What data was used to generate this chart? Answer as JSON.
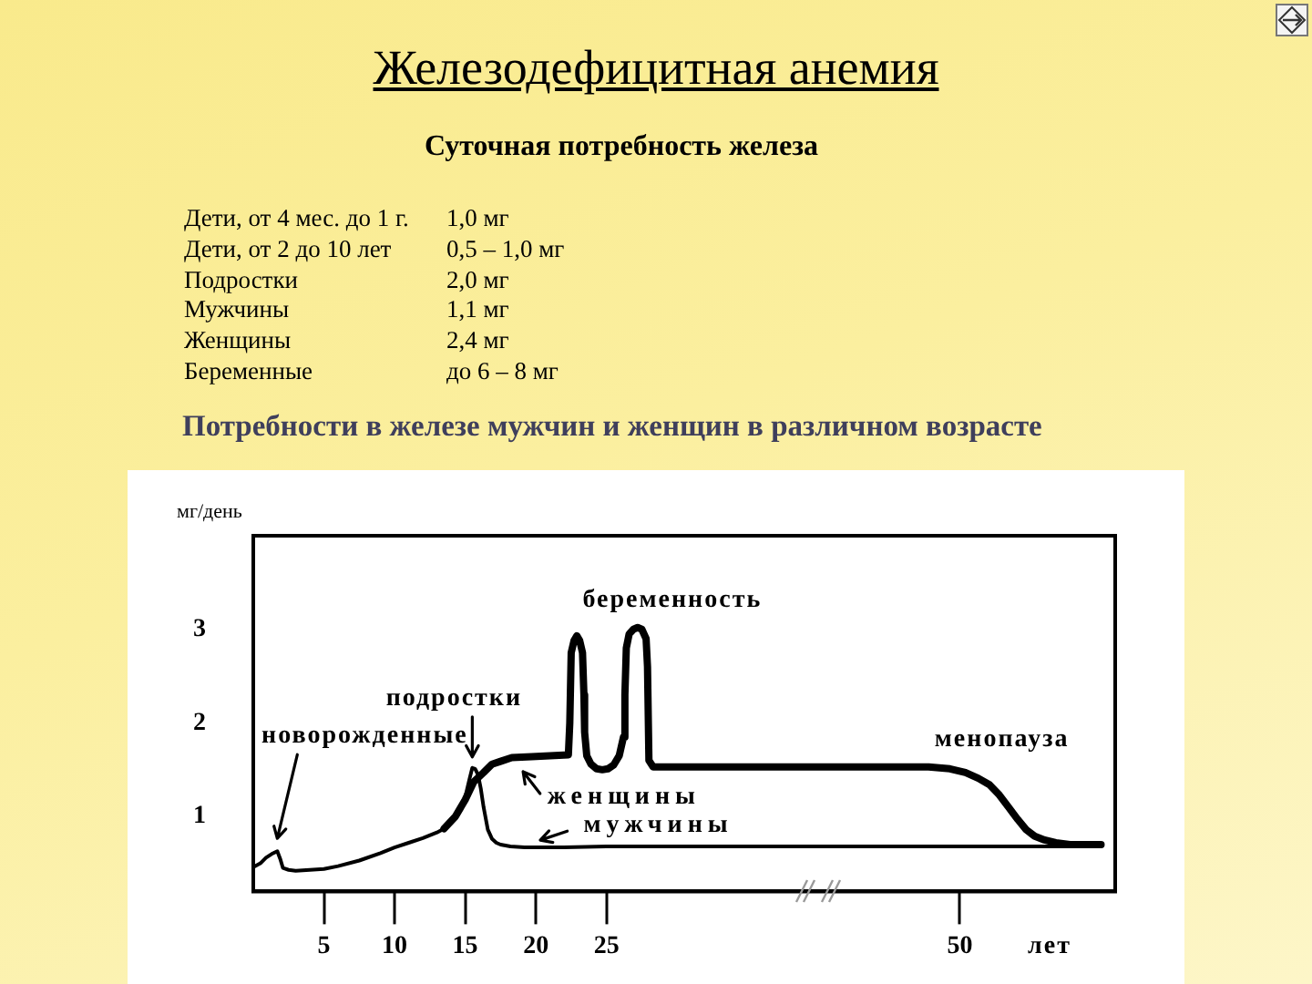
{
  "chart_data": {
    "type": "line",
    "title": "Железодефицитная анемия",
    "subtitle": "Суточная потребность железа",
    "xlabel": "лет",
    "ylabel": "мг/день",
    "xlim": [
      0,
      61
    ],
    "xticks": [
      5,
      10,
      15,
      20,
      25,
      50
    ],
    "ylim": [
      0.2,
      4
    ],
    "yticks": [
      1,
      2,
      3
    ],
    "grid": false,
    "legend": "bottom",
    "marker": "none",
    "series": [
      {
        "name": "женщины",
        "color": "#000000",
        "x": [
          13.5,
          14.3,
          15,
          15.6,
          16.3,
          16.9,
          17.5,
          18.3,
          19.7,
          21,
          22.3,
          22.4,
          22.5,
          22.7,
          22.9,
          23.1,
          23.3,
          23.4,
          23.45,
          23.6,
          23.9,
          24.3,
          24.7,
          25.1,
          25.5,
          25.9,
          26.2,
          26.3,
          26.4,
          26.6,
          26.9,
          27.2,
          27.5,
          27.8,
          27.9,
          28.0,
          28.3,
          35,
          47.8,
          49.3,
          50.4,
          51.3,
          52.1,
          52.8,
          53.4,
          54.1,
          54.7,
          55.3,
          56,
          56.8,
          57.8,
          60
        ],
        "values": [
          0.87,
          1.0,
          1.18,
          1.37,
          1.47,
          1.56,
          1.59,
          1.63,
          1.64,
          1.65,
          1.66,
          2.0,
          2.75,
          2.88,
          2.93,
          2.88,
          2.75,
          2.3,
          1.9,
          1.65,
          1.56,
          1.51,
          1.5,
          1.51,
          1.55,
          1.65,
          1.85,
          2.3,
          2.8,
          2.95,
          3.0,
          3.02,
          3.0,
          2.9,
          2.6,
          1.6,
          1.53,
          1.53,
          1.53,
          1.51,
          1.47,
          1.41,
          1.34,
          1.23,
          1.11,
          0.97,
          0.86,
          0.79,
          0.75,
          0.72,
          0.7,
          0.7
        ]
      },
      {
        "name": "мужчины",
        "color": "#000000",
        "x": [
          0,
          0.5,
          0.9,
          1.3,
          1.7,
          1.9,
          2.1,
          2.5,
          3,
          4,
          5,
          6,
          7.5,
          9,
          10,
          11,
          12,
          13,
          13.5,
          14,
          14.6,
          15,
          15.3,
          15.5,
          15.7,
          15.9,
          16.1,
          16.3,
          16.6,
          16.9,
          17.2,
          17.5,
          18.2,
          19.2,
          22,
          25,
          35,
          45,
          55,
          60
        ],
        "values": [
          0.46,
          0.5,
          0.56,
          0.6,
          0.63,
          0.55,
          0.45,
          0.43,
          0.42,
          0.43,
          0.44,
          0.47,
          0.53,
          0.61,
          0.67,
          0.72,
          0.77,
          0.83,
          0.87,
          0.94,
          1.05,
          1.21,
          1.4,
          1.52,
          1.51,
          1.45,
          1.3,
          1.1,
          0.86,
          0.76,
          0.72,
          0.7,
          0.68,
          0.67,
          0.67,
          0.68,
          0.68,
          0.68,
          0.68,
          0.68
        ]
      }
    ],
    "annotations": [
      "Дети, от 4 мес. до 1 г.",
      "1,0 мг",
      "Дети, от 2 до 10 лет",
      "0,5 – 1,0 мг",
      "Подростки",
      "2,0 мг",
      "Мужчины",
      "1,1 мг",
      "Женщины",
      "2,4 мг",
      "Беременные",
      "до 6 – 8 мг",
      "Потребности в железе мужчин и женщин в различном возрасте",
      {
        "text": "беременность",
        "x": 27.2,
        "y": 3.02
      },
      {
        "text": "подростки",
        "x": 15.5,
        "y": 1.52
      },
      {
        "text": "новорожденные",
        "x": 1.7,
        "y": 0.63
      },
      {
        "text": "менопауза",
        "x": 50.4,
        "y": 1.47
      }
    ]
  }
}
